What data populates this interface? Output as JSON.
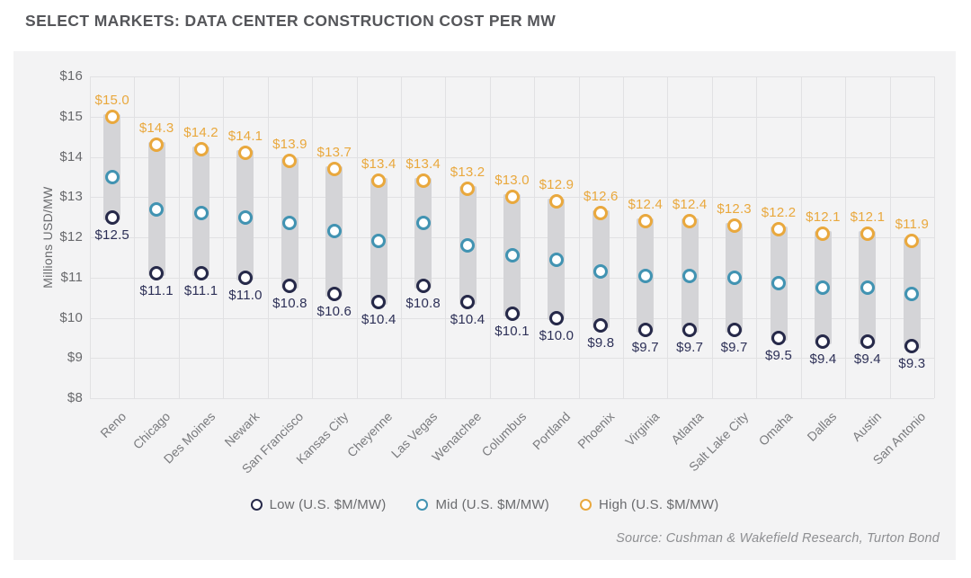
{
  "title": "SELECT MARKETS: DATA CENTER CONSTRUCTION COST PER MW",
  "source": "Source: Cushman & Wakefield Research, Turton Bond",
  "colors": {
    "low": "#262949",
    "low_label_text": "#2d3057",
    "mid": "#4193b2",
    "high": "#e9a83d",
    "bar": "#d4d4d7",
    "panel_bg": "#f3f3f4",
    "grid": "#e1e1e3"
  },
  "chart_data": {
    "type": "dumbbell-range-dot",
    "title": "SELECT MARKETS: DATA CENTER CONSTRUCTION COST PER MW",
    "xlabel": "",
    "ylabel": "Millions USD/MW",
    "ylim": [
      8,
      16
    ],
    "grid": true,
    "legend_position": "bottom",
    "y_tick_values": [
      16,
      15,
      14,
      13,
      12,
      11,
      10,
      9,
      8
    ],
    "y_tick_labels": [
      "$16",
      "$15",
      "$14",
      "$13",
      "$12",
      "$11",
      "$10",
      "$9",
      "$8"
    ],
    "categories": [
      "Reno",
      "Chicago",
      "Des Moines",
      "Newark",
      "San Francisco",
      "Kansas City",
      "Cheyenne",
      "Las Vegas",
      "Wenatchee",
      "Columbus",
      "Portland",
      "Phoenix",
      "Virginia",
      "Atlanta",
      "Salt Lake City",
      "Omaha",
      "Dallas",
      "Austin",
      "San Antonio"
    ],
    "series": [
      {
        "name": "Low (U.S. $M/MW)",
        "values": [
          12.5,
          11.1,
          11.1,
          11.0,
          10.8,
          10.6,
          10.4,
          10.8,
          10.4,
          10.1,
          10.0,
          9.8,
          9.7,
          9.7,
          9.7,
          9.5,
          9.4,
          9.4,
          9.3
        ]
      },
      {
        "name": "Mid (U.S. $M/MW)",
        "values": [
          13.5,
          12.7,
          12.6,
          12.5,
          12.35,
          12.15,
          11.9,
          12.35,
          11.8,
          11.55,
          11.45,
          11.15,
          11.05,
          11.05,
          11.0,
          10.85,
          10.75,
          10.75,
          10.6
        ]
      },
      {
        "name": "High (U.S. $M/MW)",
        "values": [
          15.0,
          14.3,
          14.2,
          14.1,
          13.9,
          13.7,
          13.4,
          13.4,
          13.2,
          13.0,
          12.9,
          12.6,
          12.4,
          12.4,
          12.3,
          12.2,
          12.1,
          12.1,
          11.9
        ]
      }
    ],
    "high_labels": [
      "$15.0",
      "$14.3",
      "$14.2",
      "$14.1",
      "$13.9",
      "$13.7",
      "$13.4",
      "$13.4",
      "$13.2",
      "$13.0",
      "$12.9",
      "$12.6",
      "$12.4",
      "$12.4",
      "$12.3",
      "$12.2",
      "$12.1",
      "$12.1",
      "$11.9"
    ],
    "low_labels": [
      "$12.5",
      "$11.1",
      "$11.1",
      "$11.0",
      "$10.8",
      "$10.6",
      "$10.4",
      "$10.8",
      "$10.4",
      "$10.1",
      "$10.0",
      "$9.8",
      "$9.7",
      "$9.7",
      "$9.7",
      "$9.5",
      "$9.4",
      "$9.4",
      "$9.3"
    ]
  }
}
